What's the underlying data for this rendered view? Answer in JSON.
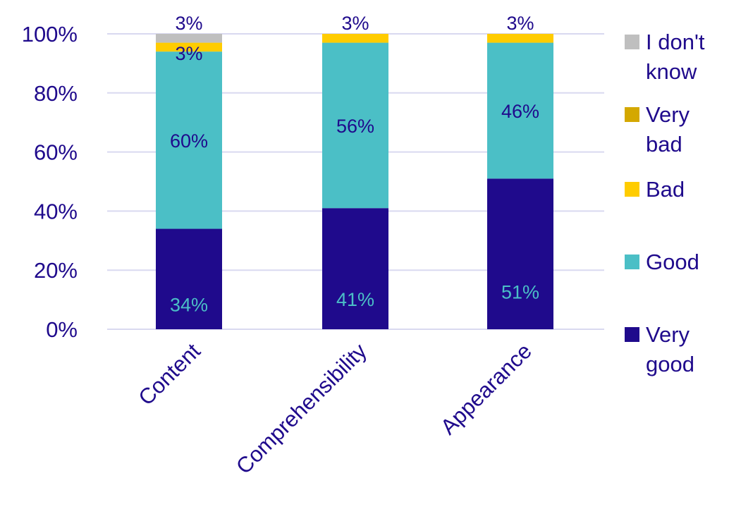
{
  "chart_data": {
    "type": "bar",
    "stacked": true,
    "percent_scale": true,
    "categories": [
      "Content",
      "Comprehensibility",
      "Appearance"
    ],
    "series": [
      {
        "name": "Very good",
        "values": [
          34,
          41,
          51
        ],
        "labels": [
          "34%",
          "41%",
          "51%"
        ],
        "color": "#1f0a8c",
        "label_color": "#4bbfc6"
      },
      {
        "name": "Good",
        "values": [
          60,
          56,
          46
        ],
        "labels": [
          "60%",
          "56%",
          "46%"
        ],
        "color": "#4bbfc6",
        "label_color": "#1f0a8c"
      },
      {
        "name": "Bad",
        "values": [
          3,
          3,
          3
        ],
        "labels": [
          "3%",
          "3%",
          "3%"
        ],
        "color": "#ffcc00",
        "label_color": "#1f0a8c"
      },
      {
        "name": "Very bad",
        "values": [
          0,
          0,
          0
        ],
        "labels": [
          "",
          "",
          ""
        ],
        "color": "#d4a800",
        "label_color": "#1f0a8c"
      },
      {
        "name": "I don't know",
        "values": [
          3,
          0,
          0
        ],
        "labels": [
          "3%",
          "",
          ""
        ],
        "color": "#bfbfbf",
        "label_color": "#1f0a8c"
      }
    ],
    "legend_items": [
      {
        "lines": [
          "I don't",
          "know"
        ],
        "color": "#bfbfbf"
      },
      {
        "lines": [
          "Very",
          "bad"
        ],
        "color": "#d4a800"
      },
      {
        "lines": [
          "Bad"
        ],
        "color": "#ffcc00"
      },
      {
        "lines": [
          "Good"
        ],
        "color": "#4bbfc6"
      },
      {
        "lines": [
          "Very",
          "good"
        ],
        "color": "#1f0a8c"
      }
    ],
    "yticks": [
      "0%",
      "20%",
      "40%",
      "60%",
      "80%",
      "100%"
    ],
    "ylim": [
      0,
      100
    ],
    "grid": true,
    "legend_position": "right",
    "text_color": "#1f0a8c",
    "grid_color": "#d9d9f0"
  }
}
